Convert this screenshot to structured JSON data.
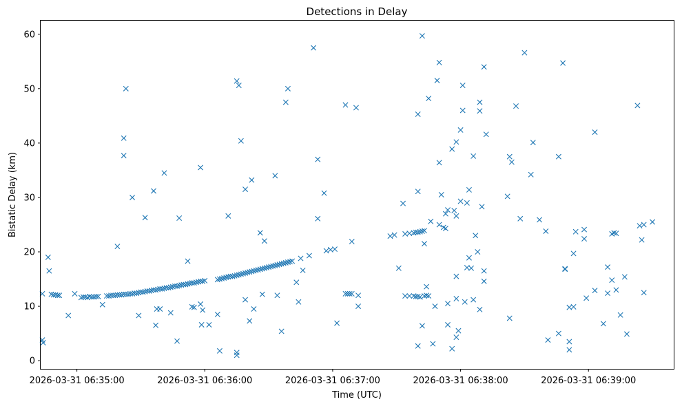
{
  "chart_data": {
    "type": "scatter",
    "title": "Detections in Delay",
    "xlabel": "Time (UTC)",
    "ylabel": "Bistatic Delay (km)",
    "marker": "x",
    "color": "#1f77b4",
    "x_unit": "seconds since 2026-03-31 06:35:00 UTC",
    "xlim": [
      -17,
      280
    ],
    "ylim": [
      -1.5,
      62.5
    ],
    "x_ticks": [
      {
        "value": 0,
        "label": "2026-03-31 06:35:00"
      },
      {
        "value": 60,
        "label": "2026-03-31 06:36:00"
      },
      {
        "value": 120,
        "label": "2026-03-31 06:37:00"
      },
      {
        "value": 180,
        "label": "2026-03-31 06:38:00"
      },
      {
        "value": 240,
        "label": "2026-03-31 06:39:00"
      }
    ],
    "y_ticks": [
      {
        "value": 0,
        "label": "0"
      },
      {
        "value": 10,
        "label": "10"
      },
      {
        "value": 20,
        "label": "20"
      },
      {
        "value": 30,
        "label": "30"
      },
      {
        "value": 40,
        "label": "40"
      },
      {
        "value": 50,
        "label": "50"
      },
      {
        "value": 60,
        "label": "60"
      }
    ],
    "points": [
      [
        -16.2,
        12.3
      ],
      [
        -13.5,
        19.0
      ],
      [
        -13.0,
        16.5
      ],
      [
        -12.0,
        12.2
      ],
      [
        -11.0,
        12.1
      ],
      [
        -10.0,
        12.1
      ],
      [
        -9.0,
        12.0
      ],
      [
        -8.2,
        12.0
      ],
      [
        -16.2,
        3.8
      ],
      [
        -15.8,
        3.3
      ],
      [
        -4.0,
        8.3
      ],
      [
        -1.0,
        12.3
      ],
      [
        2.0,
        11.6
      ],
      [
        3.0,
        11.7
      ],
      [
        4.0,
        11.7
      ],
      [
        5.0,
        11.6
      ],
      [
        6.0,
        11.8
      ],
      [
        7.0,
        11.7
      ],
      [
        8.0,
        11.7
      ],
      [
        9.0,
        11.8
      ],
      [
        10.0,
        11.8
      ],
      [
        12.0,
        10.3
      ],
      [
        14.0,
        11.9
      ],
      [
        15.0,
        11.9
      ],
      [
        16.0,
        12.0
      ],
      [
        17.0,
        12.0
      ],
      [
        18.0,
        12.0
      ],
      [
        19.0,
        12.1
      ],
      [
        20.0,
        12.1
      ],
      [
        21.0,
        12.1
      ],
      [
        22.0,
        12.2
      ],
      [
        23.0,
        12.2
      ],
      [
        24.0,
        12.2
      ],
      [
        25.0,
        12.3
      ],
      [
        26.0,
        12.3
      ],
      [
        27.0,
        12.4
      ],
      [
        19.0,
        21.0
      ],
      [
        22.0,
        40.9
      ],
      [
        22.0,
        37.7
      ],
      [
        23.0,
        50.0
      ],
      [
        26.0,
        30.0
      ],
      [
        28.0,
        12.4
      ],
      [
        29.0,
        12.5
      ],
      [
        30.0,
        12.6
      ],
      [
        31.0,
        12.6
      ],
      [
        32.0,
        12.7
      ],
      [
        33.0,
        12.8
      ],
      [
        34.0,
        12.8
      ],
      [
        35.0,
        12.9
      ],
      [
        36.0,
        13.0
      ],
      [
        37.0,
        13.0
      ],
      [
        38.0,
        13.1
      ],
      [
        39.0,
        13.2
      ],
      [
        40.0,
        13.2
      ],
      [
        41.0,
        13.3
      ],
      [
        42.0,
        13.4
      ],
      [
        43.0,
        13.4
      ],
      [
        44.0,
        13.5
      ],
      [
        45.0,
        13.6
      ],
      [
        46.0,
        13.7
      ],
      [
        47.0,
        13.7
      ],
      [
        48.0,
        13.8
      ],
      [
        49.0,
        13.9
      ],
      [
        50.0,
        14.0
      ],
      [
        51.0,
        14.0
      ],
      [
        52.0,
        14.1
      ],
      [
        53.0,
        14.2
      ],
      [
        54.0,
        14.3
      ],
      [
        55.0,
        14.3
      ],
      [
        56.0,
        14.4
      ],
      [
        57.0,
        14.5
      ],
      [
        58.0,
        14.6
      ],
      [
        59.0,
        14.6
      ],
      [
        60.0,
        14.7
      ],
      [
        29.0,
        8.3
      ],
      [
        32.0,
        26.3
      ],
      [
        36.0,
        31.2
      ],
      [
        37.0,
        6.5
      ],
      [
        37.5,
        9.5
      ],
      [
        39.0,
        9.5
      ],
      [
        41.0,
        34.5
      ],
      [
        44.0,
        8.8
      ],
      [
        47.0,
        3.6
      ],
      [
        48.0,
        26.2
      ],
      [
        52.0,
        18.3
      ],
      [
        54.0,
        9.9
      ],
      [
        55.0,
        9.8
      ],
      [
        58.0,
        35.5
      ],
      [
        58.0,
        10.4
      ],
      [
        58.5,
        6.6
      ],
      [
        59.0,
        9.3
      ],
      [
        62.0,
        6.6
      ],
      [
        66.0,
        8.5
      ],
      [
        66.0,
        14.9
      ],
      [
        67.0,
        1.8
      ],
      [
        67.0,
        15.0
      ],
      [
        68.0,
        15.1
      ],
      [
        69.0,
        15.2
      ],
      [
        70.0,
        15.3
      ],
      [
        71.0,
        15.4
      ],
      [
        72.0,
        15.5
      ],
      [
        73.0,
        15.5
      ],
      [
        74.0,
        15.6
      ],
      [
        75.0,
        15.7
      ],
      [
        76.0,
        15.8
      ],
      [
        77.0,
        15.9
      ],
      [
        78.0,
        16.0
      ],
      [
        79.0,
        16.1
      ],
      [
        80.0,
        16.2
      ],
      [
        81.0,
        16.3
      ],
      [
        82.0,
        16.4
      ],
      [
        83.0,
        16.5
      ],
      [
        84.0,
        16.6
      ],
      [
        85.0,
        16.7
      ],
      [
        86.0,
        16.8
      ],
      [
        87.0,
        16.9
      ],
      [
        88.0,
        17.0
      ],
      [
        89.0,
        17.1
      ],
      [
        90.0,
        17.2
      ],
      [
        91.0,
        17.3
      ],
      [
        92.0,
        17.4
      ],
      [
        93.0,
        17.5
      ],
      [
        94.0,
        17.6
      ],
      [
        95.0,
        17.7
      ],
      [
        96.0,
        17.8
      ],
      [
        97.0,
        17.9
      ],
      [
        98.0,
        18.0
      ],
      [
        99.0,
        18.1
      ],
      [
        100.0,
        18.2
      ],
      [
        101.0,
        18.3
      ],
      [
        71.0,
        26.6
      ],
      [
        75.0,
        51.4
      ],
      [
        75.0,
        1.5
      ],
      [
        75.0,
        1.0
      ],
      [
        76.0,
        50.6
      ],
      [
        77.0,
        40.4
      ],
      [
        79.0,
        31.5
      ],
      [
        79.0,
        11.2
      ],
      [
        81.0,
        7.3
      ],
      [
        82.0,
        33.2
      ],
      [
        83.0,
        9.5
      ],
      [
        86.0,
        23.5
      ],
      [
        87.0,
        12.2
      ],
      [
        88.0,
        22.0
      ],
      [
        93.0,
        34.0
      ],
      [
        94.0,
        12.0
      ],
      [
        96.0,
        5.4
      ],
      [
        98.0,
        47.5
      ],
      [
        99.0,
        50.0
      ],
      [
        103.0,
        14.4
      ],
      [
        104.0,
        10.8
      ],
      [
        105.0,
        18.8
      ],
      [
        106.0,
        16.6
      ],
      [
        109.0,
        19.3
      ],
      [
        111.0,
        57.5
      ],
      [
        113.0,
        37.0
      ],
      [
        113.0,
        26.1
      ],
      [
        116.0,
        30.8
      ],
      [
        117.0,
        20.2
      ],
      [
        119.0,
        20.4
      ],
      [
        121.0,
        20.5
      ],
      [
        122.0,
        6.9
      ],
      [
        126.0,
        47.0
      ],
      [
        131.0,
        46.5
      ],
      [
        126.0,
        12.3
      ],
      [
        127.0,
        12.3
      ],
      [
        128.0,
        12.3
      ],
      [
        129.0,
        12.3
      ],
      [
        129.0,
        21.9
      ],
      [
        132.0,
        12.0
      ],
      [
        132.0,
        10.0
      ],
      [
        147.0,
        22.9
      ],
      [
        149.0,
        23.1
      ],
      [
        151.0,
        17.0
      ],
      [
        153.0,
        28.9
      ],
      [
        154.0,
        23.3
      ],
      [
        156.0,
        23.4
      ],
      [
        158.0,
        23.5
      ],
      [
        159.0,
        23.6
      ],
      [
        160.0,
        23.6
      ],
      [
        161.0,
        23.7
      ],
      [
        162.0,
        23.8
      ],
      [
        163.0,
        23.9
      ],
      [
        154.0,
        11.9
      ],
      [
        156.0,
        11.9
      ],
      [
        158.0,
        11.9
      ],
      [
        159.0,
        11.8
      ],
      [
        160.0,
        11.8
      ],
      [
        161.0,
        11.7
      ],
      [
        163.0,
        11.9
      ],
      [
        165.0,
        11.9
      ],
      [
        164.0,
        12.0
      ],
      [
        160.0,
        45.3
      ],
      [
        160.0,
        31.1
      ],
      [
        160.0,
        2.7
      ],
      [
        162.0,
        59.7
      ],
      [
        162.0,
        6.4
      ],
      [
        163.0,
        21.5
      ],
      [
        164.0,
        13.6
      ],
      [
        165.0,
        48.2
      ],
      [
        166.0,
        25.6
      ],
      [
        167.0,
        3.1
      ],
      [
        168.0,
        10.0
      ],
      [
        169.0,
        51.5
      ],
      [
        170.0,
        54.8
      ],
      [
        170.0,
        36.4
      ],
      [
        170.0,
        25.0
      ],
      [
        171.0,
        30.5
      ],
      [
        172.0,
        24.5
      ],
      [
        173.0,
        27.0
      ],
      [
        173.0,
        24.3
      ],
      [
        174.0,
        27.7
      ],
      [
        174.0,
        10.5
      ],
      [
        174.0,
        6.6
      ],
      [
        176.0,
        38.9
      ],
      [
        176.0,
        2.2
      ],
      [
        177.0,
        27.6
      ],
      [
        178.0,
        40.2
      ],
      [
        178.0,
        26.6
      ],
      [
        178.0,
        15.5
      ],
      [
        178.0,
        11.4
      ],
      [
        178.0,
        4.3
      ],
      [
        179.0,
        5.5
      ],
      [
        180.0,
        29.3
      ],
      [
        180.0,
        42.4
      ],
      [
        181.0,
        46.0
      ],
      [
        181.0,
        50.6
      ],
      [
        182.0,
        10.8
      ],
      [
        183.0,
        17.1
      ],
      [
        183.0,
        29.0
      ],
      [
        184.0,
        31.4
      ],
      [
        184.0,
        18.9
      ],
      [
        185.0,
        17.0
      ],
      [
        186.0,
        37.6
      ],
      [
        186.0,
        11.2
      ],
      [
        187.0,
        23.0
      ],
      [
        188.0,
        20.0
      ],
      [
        189.0,
        9.4
      ],
      [
        189.0,
        47.5
      ],
      [
        189.0,
        45.9
      ],
      [
        190.0,
        28.3
      ],
      [
        191.0,
        54.0
      ],
      [
        191.0,
        16.5
      ],
      [
        191.0,
        14.6
      ],
      [
        192.0,
        41.6
      ],
      [
        202.0,
        30.2
      ],
      [
        203.0,
        37.5
      ],
      [
        204.0,
        36.5
      ],
      [
        203.0,
        7.8
      ],
      [
        206.0,
        46.8
      ],
      [
        208.0,
        26.1
      ],
      [
        210.0,
        56.6
      ],
      [
        213.0,
        34.2
      ],
      [
        214.0,
        40.1
      ],
      [
        217.0,
        25.9
      ],
      [
        220.0,
        23.8
      ],
      [
        221.0,
        3.8
      ],
      [
        226.0,
        37.5
      ],
      [
        226.0,
        5.0
      ],
      [
        228.0,
        54.7
      ],
      [
        229.0,
        16.9
      ],
      [
        229.0,
        16.8
      ],
      [
        231.0,
        9.8
      ],
      [
        231.0,
        3.5
      ],
      [
        231.0,
        2.0
      ],
      [
        233.0,
        9.9
      ],
      [
        233.0,
        19.7
      ],
      [
        234.0,
        23.7
      ],
      [
        238.0,
        24.1
      ],
      [
        238.0,
        22.4
      ],
      [
        239.0,
        11.5
      ],
      [
        243.0,
        12.9
      ],
      [
        243.0,
        42.0
      ],
      [
        247.0,
        6.8
      ],
      [
        249.0,
        17.2
      ],
      [
        249.0,
        12.4
      ],
      [
        251.0,
        14.8
      ],
      [
        251.0,
        23.3
      ],
      [
        252.0,
        23.5
      ],
      [
        253.0,
        23.4
      ],
      [
        253.0,
        13.0
      ],
      [
        255.0,
        8.4
      ],
      [
        257.0,
        15.4
      ],
      [
        258.0,
        4.9
      ],
      [
        263.0,
        46.9
      ],
      [
        264.0,
        24.8
      ],
      [
        265.0,
        22.2
      ],
      [
        266.0,
        25.0
      ],
      [
        266.0,
        12.5
      ],
      [
        270.0,
        25.5
      ]
    ]
  }
}
